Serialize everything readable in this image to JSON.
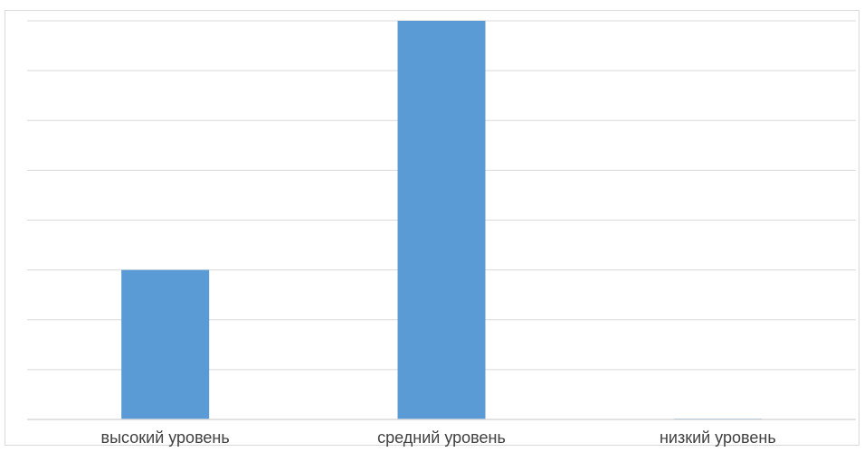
{
  "chart_data": {
    "type": "bar",
    "categories": [
      "высокий уровень",
      "средний уровень",
      "низкий уровень"
    ],
    "values": [
      30,
      80,
      0
    ],
    "ylim": [
      0,
      80
    ],
    "grid": true,
    "title": "",
    "xlabel": "",
    "ylabel": "",
    "bar_color": "#5b9bd5",
    "grid_color": "#d9d9d9"
  }
}
